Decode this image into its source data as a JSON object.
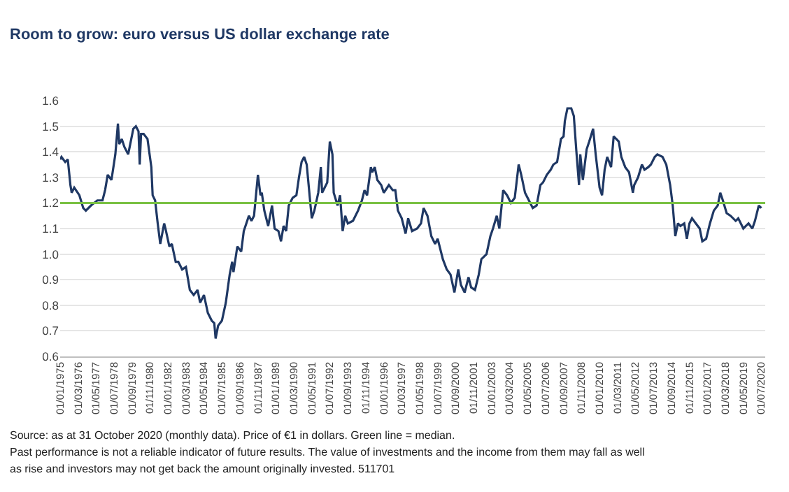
{
  "chart_data": {
    "type": "line",
    "title": "Room to grow: euro versus US dollar exchange rate",
    "x": [
      "1975-01",
      "1975-02",
      "1975-05",
      "1975-07",
      "1975-09",
      "1975-10",
      "1975-12",
      "1976-04",
      "1976-07",
      "1976-09",
      "1977-01",
      "1977-06",
      "1977-10",
      "1977-12",
      "1978-02",
      "1978-05",
      "1978-08",
      "1978-10",
      "1978-11",
      "1979-01",
      "1979-03",
      "1979-06",
      "1979-08",
      "1979-10",
      "1979-12",
      "1980-02",
      "1980-03",
      "1980-04",
      "1980-06",
      "1980-09",
      "1980-12",
      "1981-01",
      "1981-03",
      "1981-05",
      "1981-07",
      "1981-10",
      "1981-11",
      "1982-02",
      "1982-04",
      "1982-07",
      "1982-09",
      "1982-12",
      "1983-03",
      "1983-06",
      "1983-09",
      "1983-12",
      "1984-02",
      "1984-05",
      "1984-08",
      "1984-11",
      "1985-01",
      "1985-02",
      "1985-04",
      "1985-07",
      "1985-10",
      "1986-01",
      "1986-03",
      "1986-04",
      "1986-07",
      "1986-10",
      "1986-12",
      "1987-04",
      "1987-06",
      "1987-08",
      "1987-11",
      "1988-01",
      "1988-02",
      "1988-04",
      "1988-07",
      "1988-10",
      "1988-12",
      "1989-03",
      "1989-05",
      "1989-07",
      "1989-09",
      "1989-11",
      "1990-02",
      "1990-05",
      "1990-07",
      "1990-09",
      "1990-11",
      "1991-01",
      "1991-04",
      "1991-05",
      "1991-07",
      "1991-10",
      "1991-12",
      "1992-01",
      "1992-03",
      "1992-05",
      "1992-07",
      "1992-09",
      "1992-10",
      "1993-01",
      "1993-03",
      "1993-05",
      "1993-07",
      "1993-09",
      "1994-01",
      "1994-05",
      "1994-08",
      "1994-10",
      "1994-12",
      "1995-03",
      "1995-04",
      "1995-06",
      "1995-08",
      "1995-11",
      "1996-01",
      "1996-05",
      "1996-08",
      "1996-10",
      "1996-12",
      "1997-03",
      "1997-06",
      "1997-08",
      "1997-11",
      "1998-03",
      "1998-06",
      "1998-08",
      "1998-11",
      "1999-02",
      "1999-05",
      "1999-07",
      "1999-11",
      "2000-02",
      "2000-05",
      "2000-08",
      "2000-11",
      "2001-01",
      "2001-04",
      "2001-07",
      "2001-09",
      "2001-12",
      "2002-03",
      "2002-05",
      "2002-09",
      "2002-12",
      "2003-02",
      "2003-05",
      "2003-07",
      "2003-10",
      "2004-01",
      "2004-04",
      "2004-07",
      "2004-10",
      "2004-12",
      "2005-03",
      "2005-05",
      "2005-09",
      "2005-12",
      "2006-03",
      "2006-05",
      "2006-08",
      "2006-11",
      "2007-01",
      "2007-04",
      "2007-07",
      "2007-09",
      "2007-10",
      "2007-12",
      "2008-03",
      "2008-05",
      "2008-07",
      "2008-09",
      "2008-10",
      "2008-12",
      "2009-03",
      "2009-05",
      "2009-08",
      "2009-10",
      "2010-01",
      "2010-03",
      "2010-05",
      "2010-07",
      "2010-10",
      "2010-12",
      "2011-02",
      "2011-04",
      "2011-06",
      "2011-09",
      "2011-12",
      "2012-03",
      "2012-04",
      "2012-07",
      "2012-10",
      "2012-12",
      "2013-03",
      "2013-05",
      "2013-08",
      "2013-10",
      "2014-02",
      "2014-05",
      "2014-08",
      "2014-10",
      "2014-12",
      "2015-02",
      "2015-04",
      "2015-07",
      "2015-09",
      "2015-11",
      "2016-01",
      "2016-04",
      "2016-07",
      "2016-09",
      "2016-12",
      "2017-03",
      "2017-06",
      "2017-09",
      "2017-11",
      "2018-01",
      "2018-04",
      "2018-07",
      "2018-11",
      "2019-01",
      "2019-05",
      "2019-09",
      "2019-12",
      "2020-02",
      "2020-05",
      "2020-07"
    ],
    "series": [
      {
        "color": "#1f3864",
        "values": [
          1.37,
          1.38,
          1.36,
          1.37,
          1.27,
          1.24,
          1.26,
          1.23,
          1.18,
          1.17,
          1.19,
          1.21,
          1.21,
          1.25,
          1.31,
          1.29,
          1.39,
          1.51,
          1.43,
          1.45,
          1.42,
          1.39,
          1.44,
          1.49,
          1.5,
          1.48,
          1.35,
          1.47,
          1.47,
          1.45,
          1.34,
          1.23,
          1.21,
          1.12,
          1.04,
          1.12,
          1.1,
          1.03,
          1.04,
          0.97,
          0.97,
          0.94,
          0.95,
          0.86,
          0.84,
          0.86,
          0.81,
          0.84,
          0.77,
          0.74,
          0.73,
          0.67,
          0.72,
          0.74,
          0.81,
          0.92,
          0.97,
          0.93,
          1.03,
          1.01,
          1.09,
          1.15,
          1.13,
          1.15,
          1.31,
          1.23,
          1.24,
          1.17,
          1.11,
          1.19,
          1.1,
          1.09,
          1.05,
          1.11,
          1.09,
          1.19,
          1.22,
          1.23,
          1.3,
          1.36,
          1.38,
          1.35,
          1.19,
          1.14,
          1.17,
          1.24,
          1.34,
          1.24,
          1.26,
          1.28,
          1.44,
          1.39,
          1.24,
          1.19,
          1.23,
          1.09,
          1.15,
          1.12,
          1.13,
          1.17,
          1.21,
          1.25,
          1.23,
          1.34,
          1.32,
          1.34,
          1.29,
          1.27,
          1.24,
          1.27,
          1.25,
          1.25,
          1.17,
          1.14,
          1.08,
          1.14,
          1.09,
          1.1,
          1.12,
          1.18,
          1.15,
          1.07,
          1.04,
          1.06,
          0.98,
          0.94,
          0.92,
          0.85,
          0.94,
          0.88,
          0.85,
          0.91,
          0.87,
          0.86,
          0.92,
          0.98,
          1.0,
          1.07,
          1.1,
          1.15,
          1.1,
          1.25,
          1.23,
          1.2,
          1.22,
          1.35,
          1.31,
          1.24,
          1.22,
          1.18,
          1.19,
          1.27,
          1.28,
          1.31,
          1.33,
          1.35,
          1.36,
          1.45,
          1.46,
          1.52,
          1.57,
          1.57,
          1.54,
          1.4,
          1.27,
          1.39,
          1.29,
          1.41,
          1.44,
          1.49,
          1.39,
          1.26,
          1.23,
          1.33,
          1.38,
          1.34,
          1.46,
          1.45,
          1.44,
          1.38,
          1.34,
          1.32,
          1.24,
          1.27,
          1.3,
          1.35,
          1.33,
          1.34,
          1.35,
          1.38,
          1.39,
          1.38,
          1.35,
          1.27,
          1.19,
          1.07,
          1.12,
          1.11,
          1.12,
          1.06,
          1.12,
          1.14,
          1.12,
          1.1,
          1.05,
          1.06,
          1.12,
          1.17,
          1.19,
          1.24,
          1.21,
          1.16,
          1.15,
          1.13,
          1.14,
          1.1,
          1.12,
          1.1,
          1.13,
          1.19,
          1.18
        ]
      }
    ],
    "xlim": [
      "1975-01-01",
      "2020-10-01"
    ],
    "xticks": [
      {
        "value": "1975-01-01",
        "label": "01/01/1975"
      },
      {
        "value": "1976-03-01",
        "label": "01/03/1976"
      },
      {
        "value": "1977-05-01",
        "label": "01/05/1977"
      },
      {
        "value": "1978-07-01",
        "label": "01/07/1978"
      },
      {
        "value": "1979-09-01",
        "label": "01/09/1979"
      },
      {
        "value": "1980-11-01",
        "label": "01/11/1980"
      },
      {
        "value": "1982-01-01",
        "label": "01/01/1982"
      },
      {
        "value": "1983-03-01",
        "label": "01/03/1983"
      },
      {
        "value": "1984-05-01",
        "label": "01/05/1984"
      },
      {
        "value": "1985-07-01",
        "label": "01/07/1985"
      },
      {
        "value": "1986-09-01",
        "label": "01/09/1986"
      },
      {
        "value": "1987-11-01",
        "label": "01/11/1987"
      },
      {
        "value": "1989-01-01",
        "label": "01/01/1989"
      },
      {
        "value": "1990-03-01",
        "label": "01/03/1990"
      },
      {
        "value": "1991-05-01",
        "label": "01/05/1991"
      },
      {
        "value": "1992-07-01",
        "label": "01/07/1992"
      },
      {
        "value": "1993-09-01",
        "label": "01/09/1993"
      },
      {
        "value": "1994-11-01",
        "label": "01/11/1994"
      },
      {
        "value": "1996-01-01",
        "label": "01/01/1996"
      },
      {
        "value": "1997-03-01",
        "label": "01/03/1997"
      },
      {
        "value": "1998-05-01",
        "label": "01/05/1998"
      },
      {
        "value": "1999-07-01",
        "label": "01/07/1999"
      },
      {
        "value": "2000-09-01",
        "label": "01/09/2000"
      },
      {
        "value": "2001-11-01",
        "label": "01/11/2001"
      },
      {
        "value": "2003-01-01",
        "label": "01/01/2003"
      },
      {
        "value": "2004-03-01",
        "label": "01/03/2004"
      },
      {
        "value": "2005-05-01",
        "label": "01/05/2005"
      },
      {
        "value": "2006-07-01",
        "label": "01/07/2006"
      },
      {
        "value": "2007-09-01",
        "label": "01/09/2007"
      },
      {
        "value": "2008-11-01",
        "label": "01/11/2008"
      },
      {
        "value": "2010-01-01",
        "label": "01/01/2010"
      },
      {
        "value": "2011-03-01",
        "label": "01/03/2011"
      },
      {
        "value": "2012-05-01",
        "label": "01/05/2012"
      },
      {
        "value": "2013-07-01",
        "label": "01/07/2013"
      },
      {
        "value": "2014-09-01",
        "label": "01/09/2014"
      },
      {
        "value": "2015-11-01",
        "label": "01/11/2015"
      },
      {
        "value": "2017-01-01",
        "label": "01/01/2017"
      },
      {
        "value": "2018-03-01",
        "label": "01/03/2018"
      },
      {
        "value": "2019-05-01",
        "label": "01/05/2019"
      },
      {
        "value": "2020-07-01",
        "label": "01/07/2020"
      }
    ],
    "ylim": [
      0.6,
      1.6
    ],
    "yticks": [
      0.6,
      0.7,
      0.8,
      0.9,
      {
        "value": 1.0,
        "label": "1.0"
      },
      1.1,
      1.2,
      1.3,
      1.4,
      1.5,
      1.6
    ],
    "ref_lines": [
      {
        "axis": "y",
        "value": 1.2,
        "color": "#7ac143"
      }
    ],
    "grid": "y",
    "annotations": [
      "Source: as at 31 October 2020 (monthly data). Price of €1 in dollars. Green line = median.",
      "Past performance is not a reliable indicator of future results. The value of investments and the income from them may fall as well as rise and investors may not get back the amount originally invested. 511701"
    ]
  }
}
